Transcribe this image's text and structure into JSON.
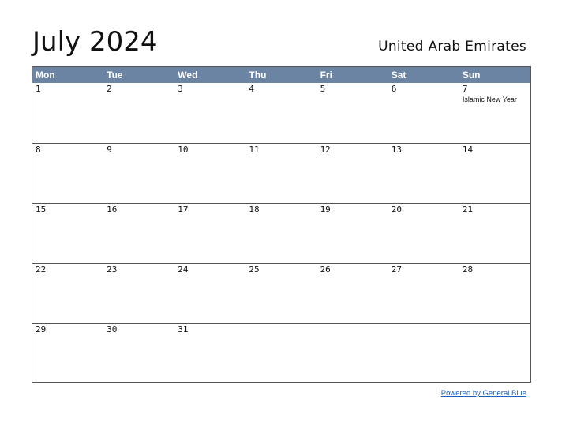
{
  "title": "July 2024",
  "country": "United Arab Emirates",
  "weekdays": [
    "Mon",
    "Tue",
    "Wed",
    "Thu",
    "Fri",
    "Sat",
    "Sun"
  ],
  "weeks": [
    [
      {
        "num": "1",
        "holiday": ""
      },
      {
        "num": "2",
        "holiday": ""
      },
      {
        "num": "3",
        "holiday": ""
      },
      {
        "num": "4",
        "holiday": ""
      },
      {
        "num": "5",
        "holiday": ""
      },
      {
        "num": "6",
        "holiday": ""
      },
      {
        "num": "7",
        "holiday": "Islamic New Year"
      }
    ],
    [
      {
        "num": "8",
        "holiday": ""
      },
      {
        "num": "9",
        "holiday": ""
      },
      {
        "num": "10",
        "holiday": ""
      },
      {
        "num": "11",
        "holiday": ""
      },
      {
        "num": "12",
        "holiday": ""
      },
      {
        "num": "13",
        "holiday": ""
      },
      {
        "num": "14",
        "holiday": ""
      }
    ],
    [
      {
        "num": "15",
        "holiday": ""
      },
      {
        "num": "16",
        "holiday": ""
      },
      {
        "num": "17",
        "holiday": ""
      },
      {
        "num": "18",
        "holiday": ""
      },
      {
        "num": "19",
        "holiday": ""
      },
      {
        "num": "20",
        "holiday": ""
      },
      {
        "num": "21",
        "holiday": ""
      }
    ],
    [
      {
        "num": "22",
        "holiday": ""
      },
      {
        "num": "23",
        "holiday": ""
      },
      {
        "num": "24",
        "holiday": ""
      },
      {
        "num": "25",
        "holiday": ""
      },
      {
        "num": "26",
        "holiday": ""
      },
      {
        "num": "27",
        "holiday": ""
      },
      {
        "num": "28",
        "holiday": ""
      }
    ],
    [
      {
        "num": "29",
        "holiday": ""
      },
      {
        "num": "30",
        "holiday": ""
      },
      {
        "num": "31",
        "holiday": ""
      },
      {
        "num": "",
        "holiday": ""
      },
      {
        "num": "",
        "holiday": ""
      },
      {
        "num": "",
        "holiday": ""
      },
      {
        "num": "",
        "holiday": ""
      }
    ]
  ],
  "footer": {
    "link_text": "Powered by General Blue"
  },
  "colors": {
    "header_bg": "#6c84a3",
    "link": "#1f5fbf"
  }
}
